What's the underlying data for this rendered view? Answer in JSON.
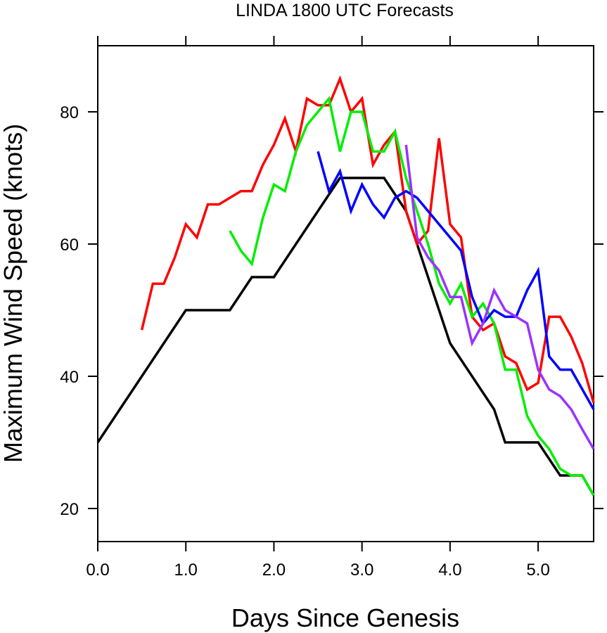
{
  "chart_data": {
    "type": "line",
    "title": "LINDA 1800 UTC Forecasts",
    "xlabel": "Days Since Genesis",
    "ylabel": "Maximum Wind Speed (knots)",
    "xlim": [
      0,
      5.63
    ],
    "ylim": [
      15,
      90
    ],
    "xticks": [
      0,
      1,
      2,
      3,
      4,
      5
    ],
    "xtick_labels": [
      "0.0",
      "1.0",
      "2.0",
      "3.0",
      "4.0",
      "5.0"
    ],
    "yticks": [
      20,
      40,
      60,
      80
    ],
    "ytick_labels": [
      "20",
      "40",
      "60",
      "80"
    ],
    "grid": false,
    "legend": "none",
    "series": [
      {
        "color": "#000000",
        "points": [
          [
            0,
            30
          ],
          [
            1,
            50
          ],
          [
            1.5,
            50
          ],
          [
            1.75,
            55
          ],
          [
            2,
            55
          ],
          [
            2.75,
            70
          ],
          [
            3.25,
            70
          ],
          [
            3.5,
            65
          ],
          [
            4,
            45
          ],
          [
            4.5,
            35
          ],
          [
            4.625,
            30
          ],
          [
            5,
            30
          ],
          [
            5.25,
            25
          ],
          [
            5.5,
            25
          ],
          [
            5.63,
            22
          ]
        ]
      },
      {
        "color": "#ff0000",
        "points": [
          [
            0.5,
            47
          ],
          [
            0.625,
            54
          ],
          [
            0.75,
            54
          ],
          [
            0.875,
            58
          ],
          [
            1,
            63
          ],
          [
            1.125,
            61
          ],
          [
            1.25,
            66
          ],
          [
            1.375,
            66
          ],
          [
            1.5,
            67
          ],
          [
            1.625,
            68
          ],
          [
            1.75,
            68
          ],
          [
            1.875,
            72
          ],
          [
            2,
            75
          ],
          [
            2.125,
            79
          ],
          [
            2.25,
            74
          ],
          [
            2.375,
            82
          ],
          [
            2.5,
            81
          ],
          [
            2.625,
            81
          ],
          [
            2.75,
            85
          ],
          [
            2.875,
            80
          ],
          [
            3,
            82
          ],
          [
            3.125,
            72
          ],
          [
            3.25,
            75
          ],
          [
            3.375,
            77
          ],
          [
            3.5,
            65
          ],
          [
            3.625,
            60
          ],
          [
            3.75,
            62
          ],
          [
            3.875,
            76
          ],
          [
            4,
            63
          ],
          [
            4.125,
            61
          ],
          [
            4.25,
            49
          ],
          [
            4.375,
            47
          ],
          [
            4.5,
            48
          ],
          [
            4.625,
            43
          ],
          [
            4.75,
            42
          ],
          [
            4.875,
            38
          ],
          [
            5,
            39
          ],
          [
            5.125,
            49
          ],
          [
            5.25,
            49
          ],
          [
            5.375,
            46
          ],
          [
            5.5,
            42
          ],
          [
            5.63,
            36
          ]
        ]
      },
      {
        "color": "#00ee00",
        "points": [
          [
            1.5,
            62
          ],
          [
            1.625,
            59
          ],
          [
            1.75,
            57
          ],
          [
            1.875,
            64
          ],
          [
            2,
            69
          ],
          [
            2.125,
            68
          ],
          [
            2.25,
            74
          ],
          [
            2.375,
            78
          ],
          [
            2.5,
            80
          ],
          [
            2.625,
            82
          ],
          [
            2.75,
            74
          ],
          [
            2.875,
            80
          ],
          [
            3,
            80
          ],
          [
            3.125,
            74
          ],
          [
            3.25,
            74
          ],
          [
            3.375,
            77
          ],
          [
            3.5,
            70
          ],
          [
            3.625,
            65
          ],
          [
            3.75,
            60
          ],
          [
            3.875,
            54
          ],
          [
            4,
            51
          ],
          [
            4.125,
            54
          ],
          [
            4.25,
            49
          ],
          [
            4.375,
            51
          ],
          [
            4.5,
            48
          ],
          [
            4.625,
            41
          ],
          [
            4.75,
            41
          ],
          [
            4.875,
            34
          ],
          [
            5,
            31
          ],
          [
            5.125,
            29
          ],
          [
            5.25,
            26
          ],
          [
            5.375,
            25
          ],
          [
            5.5,
            25
          ],
          [
            5.63,
            22
          ]
        ]
      },
      {
        "color": "#0000ff",
        "points": [
          [
            2.5,
            74
          ],
          [
            2.625,
            68
          ],
          [
            2.75,
            71
          ],
          [
            2.875,
            65
          ],
          [
            3,
            69
          ],
          [
            3.125,
            66
          ],
          [
            3.25,
            64
          ],
          [
            3.375,
            67
          ],
          [
            3.5,
            68
          ],
          [
            3.625,
            67
          ],
          [
            4.125,
            59
          ],
          [
            4.25,
            52
          ],
          [
            4.375,
            48
          ],
          [
            4.5,
            50
          ],
          [
            4.625,
            49
          ],
          [
            4.75,
            49
          ],
          [
            4.875,
            53
          ],
          [
            5,
            56
          ],
          [
            5.125,
            43
          ],
          [
            5.25,
            41
          ],
          [
            5.375,
            41
          ],
          [
            5.63,
            35
          ]
        ]
      },
      {
        "color": "#9a32ff",
        "points": [
          [
            3.5,
            75
          ],
          [
            3.625,
            61
          ],
          [
            3.75,
            58
          ],
          [
            3.875,
            56
          ],
          [
            4,
            52
          ],
          [
            4.125,
            52
          ],
          [
            4.25,
            45
          ],
          [
            4.375,
            48
          ],
          [
            4.5,
            53
          ],
          [
            4.625,
            50
          ],
          [
            4.75,
            49
          ],
          [
            4.875,
            48
          ],
          [
            5,
            41
          ],
          [
            5.125,
            38
          ],
          [
            5.25,
            37
          ],
          [
            5.375,
            35
          ],
          [
            5.5,
            32
          ],
          [
            5.63,
            29
          ]
        ]
      }
    ]
  }
}
